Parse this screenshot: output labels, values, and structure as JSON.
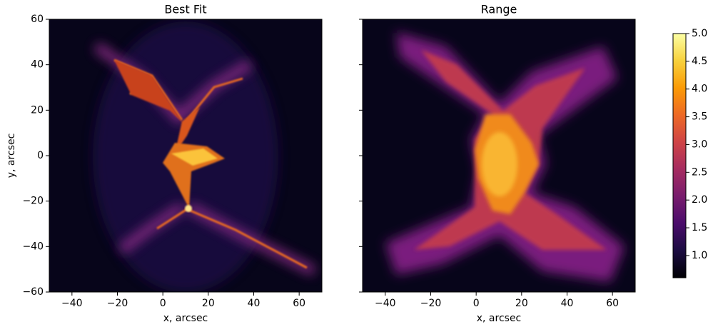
{
  "chart_data": [
    {
      "type": "heatmap",
      "title": "Best Fit",
      "xlabel": "x, arcsec",
      "ylabel": "y, arcsec",
      "xlim": [
        -50,
        70
      ],
      "ylim": [
        -60,
        60
      ],
      "xticks": [
        {
          "value": -40,
          "label": "−40"
        },
        {
          "value": -20,
          "label": "−20"
        },
        0,
        20,
        40,
        60
      ],
      "yticks": [
        {
          "value": -60,
          "label": "−60"
        },
        {
          "value": -40,
          "label": "−40"
        },
        {
          "value": -20,
          "label": "−20"
        },
        0,
        20,
        40,
        60
      ],
      "colormap": "inferno"
    },
    {
      "type": "heatmap",
      "title": "Range",
      "xlabel": "x, arcsec",
      "xlim": [
        -50,
        70
      ],
      "ylim": [
        -60,
        60
      ],
      "xticks": [
        {
          "value": -40,
          "label": "−40"
        },
        {
          "value": -20,
          "label": "−20"
        },
        0,
        20,
        40,
        60
      ],
      "yticks": [
        -60,
        -40,
        -20,
        0,
        20,
        40,
        60
      ],
      "colormap": "inferno"
    }
  ],
  "colorbar": {
    "clim": [
      0.6,
      5.0
    ],
    "colormap": "inferno",
    "ticks": [
      {
        "value": 1,
        "label": "1.0"
      },
      {
        "value": 1.5,
        "label": "1.5"
      },
      {
        "value": 2,
        "label": "2.0"
      },
      {
        "value": 2.5,
        "label": "2.5"
      },
      {
        "value": 3,
        "label": "3.0"
      },
      {
        "value": 3.5,
        "label": "3.5"
      },
      {
        "value": 4,
        "label": "4.0"
      },
      {
        "value": 4.5,
        "label": "4.5"
      },
      {
        "value": 5,
        "label": "5.0"
      }
    ]
  }
}
